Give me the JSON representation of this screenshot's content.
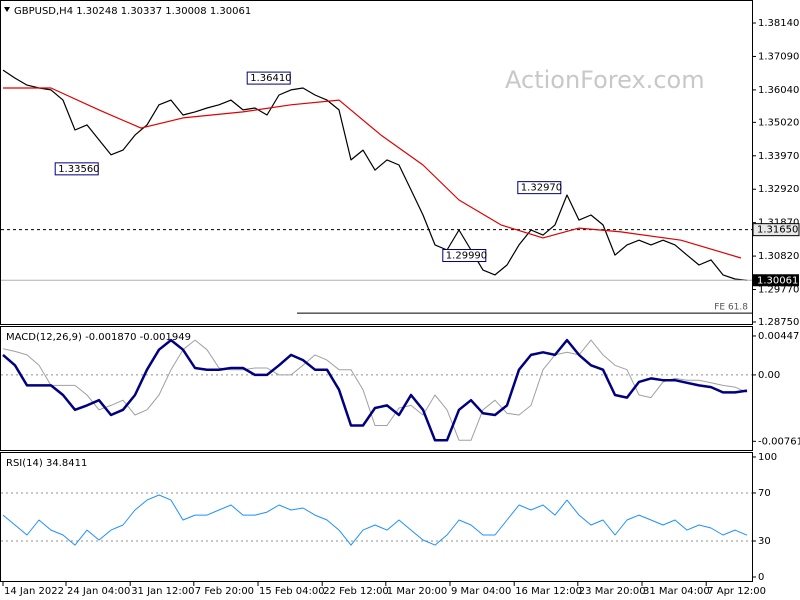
{
  "chart_data": [
    {
      "type": "line",
      "title": "GBPUSD,H4  1.30248 1.30337 1.30008 1.30061",
      "watermark": "ActionForex.com",
      "x": [
        0,
        2,
        4,
        6,
        8,
        10,
        12,
        14,
        16,
        18,
        20,
        22,
        24,
        26,
        28,
        30,
        32,
        34,
        36,
        38,
        40,
        42,
        44,
        46,
        48,
        50,
        52,
        54,
        56,
        58,
        60,
        62,
        64,
        66,
        68,
        70,
        72,
        74,
        76,
        78,
        80,
        82,
        84,
        86,
        88,
        90,
        92,
        94,
        96,
        98,
        100,
        102,
        104,
        106,
        108,
        110,
        112,
        114,
        116,
        118,
        120,
        122,
        124
      ],
      "series": [
        {
          "color": "#000000",
          "values": [
            1.3666,
            1.3641,
            1.3619,
            1.361,
            1.3604,
            1.3572,
            1.3478,
            1.3494,
            1.3447,
            1.34,
            1.3415,
            1.3462,
            1.3494,
            1.3557,
            1.3572,
            1.3525,
            1.3535,
            1.3547,
            1.3557,
            1.3572,
            1.3541,
            1.3547,
            1.3525,
            1.3588,
            1.3604,
            1.361,
            1.3588,
            1.3572,
            1.3541,
            1.3384,
            1.3415,
            1.3352,
            1.3384,
            1.3368,
            1.329,
            1.3211,
            1.3117,
            1.3101,
            1.3164,
            1.3101,
            1.3038,
            1.3023,
            1.3054,
            1.3117,
            1.3164,
            1.3148,
            1.318,
            1.3274,
            1.3195,
            1.3211,
            1.318,
            1.3085,
            1.3117,
            1.3132,
            1.3117,
            1.3132,
            1.3117,
            1.3085,
            1.3054,
            1.307,
            1.3023,
            1.301,
            1.30061
          ]
        },
        {
          "color": "#e00000",
          "x": [
            0,
            8,
            16,
            23,
            30,
            40,
            48,
            56,
            63,
            70,
            76,
            83,
            90,
            96,
            103,
            113,
            123
          ],
          "values": [
            1.361,
            1.361,
            1.3541,
            1.3484,
            1.3516,
            1.3535,
            1.3557,
            1.3572,
            1.3462,
            1.3368,
            1.3258,
            1.318,
            1.3139,
            1.317,
            1.3158,
            1.3132,
            1.3076
          ]
        }
      ],
      "show_last": true,
      "levels": [
        {
          "value": 1.3165,
          "label": "1.31650"
        }
      ],
      "fe": {
        "name": "FE 61.8",
        "value": 1.2903,
        "x": 49
      },
      "annotations": [
        {
          "x": 40.7,
          "value": 1.3641,
          "label": "1.36410"
        },
        {
          "x": 8.7,
          "value": 1.3356,
          "label": "1.33560"
        },
        {
          "x": 85.8,
          "value": 1.3297,
          "label": "1.32970"
        },
        {
          "x": 73.3,
          "value": 1.2999,
          "label": "1.29990"
        }
      ],
      "xlim": [
        -0.5,
        124.5
      ],
      "ylim": [
        1.2875,
        1.388
      ],
      "yticks": [
        {
          "value": 1.3814,
          "label": "1.38140"
        },
        {
          "value": 1.3709,
          "label": "1.37090"
        },
        {
          "value": 1.3604,
          "label": "1.36040"
        },
        {
          "value": 1.3502,
          "label": "1.35020"
        },
        {
          "value": 1.3397,
          "label": "1.33970"
        },
        {
          "value": 1.3292,
          "label": "1.32920"
        },
        {
          "value": 1.3187,
          "label": "1.31870"
        },
        {
          "value": 1.3082,
          "label": "1.30820"
        },
        {
          "value": 1.2977,
          "label": "1.29770"
        },
        {
          "value": 1.2875,
          "label": "1.28750"
        }
      ]
    },
    {
      "type": "line",
      "title": "MACD(12,26,9) -0.001870 -0.001949",
      "x": [
        0,
        2,
        4,
        6,
        8,
        10,
        12,
        14,
        16,
        18,
        20,
        22,
        24,
        26,
        28,
        30,
        32,
        34,
        36,
        38,
        40,
        42,
        44,
        46,
        48,
        50,
        52,
        54,
        56,
        58,
        60,
        62,
        64,
        66,
        68,
        70,
        72,
        74,
        76,
        78,
        80,
        82,
        84,
        86,
        88,
        90,
        92,
        94,
        96,
        98,
        100,
        102,
        104,
        106,
        108,
        110,
        112,
        114,
        116,
        118,
        120,
        122,
        124
      ],
      "series": [
        {
          "color": "#a0a0a0",
          "width": 1,
          "values": [
            0.003,
            0.0027,
            0.0023,
            0.0011,
            -0.0012,
            -0.0012,
            -0.0012,
            -0.0023,
            -0.004,
            -0.0035,
            -0.0029,
            -0.0046,
            -0.004,
            -0.0023,
            0.0006,
            0.0029,
            0.004,
            0.0029,
            0.0008,
            0.0006,
            0.0006,
            0.0008,
            0.0008,
            0,
            0,
            0.0011,
            0.0023,
            0.0017,
            0.0006,
            0.0006,
            -0.0017,
            -0.0058,
            -0.0058,
            -0.0038,
            -0.0035,
            -0.0046,
            -0.0023,
            -0.004,
            -0.0075,
            -0.0075,
            -0.004,
            -0.0029,
            -0.0044,
            -0.0046,
            -0.0035,
            0.0006,
            0.0023,
            0.0026,
            0.0023,
            0.004,
            0.0023,
            0.0011,
            0.0006,
            -0.0023,
            -0.0026,
            -0.0008,
            -0.0004,
            -0.0006,
            -0.0006,
            -0.0009,
            -0.0012,
            -0.0014,
            -0.002
          ]
        },
        {
          "color": "#000080",
          "width": 2.5,
          "values": [
            0.0023,
            0.0011,
            -0.0012,
            -0.0012,
            -0.0012,
            -0.0023,
            -0.004,
            -0.0035,
            -0.0029,
            -0.0046,
            -0.004,
            -0.0023,
            0.0006,
            0.0029,
            0.004,
            0.0029,
            0.0008,
            0.0006,
            0.0006,
            0.0008,
            0.0008,
            0,
            0,
            0.0011,
            0.0023,
            0.0017,
            0.0006,
            0.0006,
            -0.0017,
            -0.0058,
            -0.0058,
            -0.0038,
            -0.0035,
            -0.0046,
            -0.0023,
            -0.004,
            -0.0075,
            -0.0075,
            -0.004,
            -0.0029,
            -0.0044,
            -0.0046,
            -0.0035,
            0.0006,
            0.0023,
            0.0026,
            0.0023,
            0.004,
            0.0023,
            0.0011,
            0.0006,
            -0.0023,
            -0.0026,
            -0.0008,
            -0.0004,
            -0.0006,
            -0.0006,
            -0.0009,
            -0.0012,
            -0.0014,
            -0.002,
            -0.002,
            -0.0018
          ]
        }
      ],
      "levels": [
        0
      ],
      "xlim": [
        -0.5,
        124.5
      ],
      "ylim": [
        -0.0085,
        0.0055
      ],
      "yticks": [
        0.004471,
        {
          "value": 0,
          "label": "0.00"
        },
        -0.007617
      ]
    },
    {
      "type": "line",
      "title": "RSI(14) 34.8411",
      "x": [
        0,
        2,
        4,
        6,
        8,
        10,
        12,
        14,
        16,
        18,
        20,
        22,
        24,
        26,
        28,
        30,
        32,
        34,
        36,
        38,
        40,
        42,
        44,
        46,
        48,
        50,
        52,
        54,
        56,
        58,
        60,
        62,
        64,
        66,
        68,
        70,
        72,
        74,
        76,
        78,
        80,
        82,
        84,
        86,
        88,
        90,
        92,
        94,
        96,
        98,
        100,
        102,
        104,
        106,
        108,
        110,
        112,
        114,
        116,
        118,
        120,
        122,
        124
      ],
      "series": [
        {
          "color": "#1e90ff",
          "width": 1,
          "values": [
            51.6,
            43.3,
            35.0,
            47.5,
            39.1,
            35.0,
            26.6,
            39.1,
            30.8,
            39.1,
            43.3,
            55.8,
            64.1,
            68.3,
            64.1,
            47.5,
            51.6,
            51.6,
            55.8,
            60.0,
            51.6,
            51.6,
            54.1,
            60.0,
            55.8,
            57.5,
            51.6,
            47.5,
            39.1,
            26.6,
            39.1,
            43.3,
            39.1,
            47.5,
            39.1,
            30.8,
            26.6,
            35.0,
            47.5,
            43.3,
            35.0,
            35.0,
            47.5,
            60.0,
            55.8,
            60.0,
            51.6,
            64.1,
            51.6,
            43.3,
            47.5,
            35.0,
            47.5,
            51.6,
            47.5,
            43.3,
            47.5,
            39.1,
            43.3,
            40.8,
            35.0,
            39.1,
            34.8411
          ]
        }
      ],
      "levels": [
        70,
        30
      ],
      "xlim": [
        -0.5,
        124.5
      ],
      "ylim": [
        -2.5,
        103.3
      ],
      "yticks": [
        100,
        70,
        30,
        0
      ],
      "xticks": [
        {
          "value": 0,
          "label": "14 Jan 2022"
        },
        {
          "value": 10.5,
          "label": "24 Jan 04:00"
        },
        {
          "value": 21.2,
          "label": "31 Jan 12:00"
        },
        {
          "value": 31.8,
          "label": "7 Feb 20:00"
        },
        {
          "value": 42.5,
          "label": "15 Feb 04:00"
        },
        {
          "value": 53.2,
          "label": "22 Feb 12:00"
        },
        {
          "value": 63.8,
          "label": "1 Mar 20:00"
        },
        {
          "value": 74.5,
          "label": "9 Mar 04:00"
        },
        {
          "value": 85.2,
          "label": "16 Mar 12:00"
        },
        {
          "value": 95.8,
          "label": "23 Mar 20:00"
        },
        {
          "value": 106.5,
          "label": "31 Mar 04:00"
        },
        {
          "value": 117.2,
          "label": "7 Apr 12:00"
        }
      ]
    }
  ]
}
